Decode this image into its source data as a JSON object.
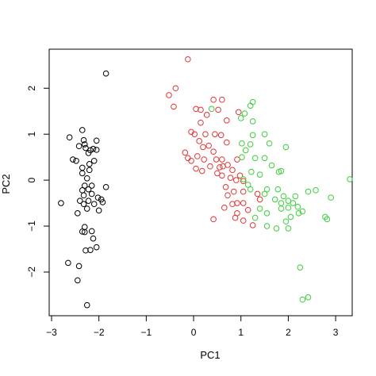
{
  "chart_data": {
    "type": "scatter",
    "title": "",
    "xlabel": "PC1",
    "ylabel": "PC2",
    "xlim": [
      -3.05,
      3.35
    ],
    "ylim": [
      -2.95,
      2.85
    ],
    "xticks": [
      -3,
      -2,
      -1,
      0,
      1,
      2,
      3
    ],
    "yticks": [
      -2,
      -1,
      0,
      1,
      2
    ],
    "grid": false,
    "legend": "none",
    "series": [
      {
        "color": "#000000",
        "points": [
          [
            -1.85,
            2.32
          ],
          [
            -2.35,
            1.09
          ],
          [
            -2.62,
            0.93
          ],
          [
            -2.32,
            0.87
          ],
          [
            -2.05,
            0.86
          ],
          [
            -2.3,
            0.78
          ],
          [
            -2.42,
            0.74
          ],
          [
            -2.28,
            0.7
          ],
          [
            -2.12,
            0.68
          ],
          [
            -2.18,
            0.65
          ],
          [
            -2.05,
            0.66
          ],
          [
            -2.22,
            0.59
          ],
          [
            -2.55,
            0.45
          ],
          [
            -2.48,
            0.42
          ],
          [
            -2.1,
            0.42
          ],
          [
            -2.2,
            0.35
          ],
          [
            -2.35,
            0.27
          ],
          [
            -2.2,
            0.22
          ],
          [
            -2.35,
            0.15
          ],
          [
            -2.25,
            0.04
          ],
          [
            -2.3,
            -0.12
          ],
          [
            -2.15,
            -0.12
          ],
          [
            -2.22,
            -0.2
          ],
          [
            -2.35,
            -0.22
          ],
          [
            -1.85,
            -0.15
          ],
          [
            -2.32,
            -0.33
          ],
          [
            -2.15,
            -0.3
          ],
          [
            -1.95,
            -0.42
          ],
          [
            -2.02,
            -0.38
          ],
          [
            -2.4,
            -0.45
          ],
          [
            -2.22,
            -0.45
          ],
          [
            -2.8,
            -0.5
          ],
          [
            -1.92,
            -0.48
          ],
          [
            -2.32,
            -0.52
          ],
          [
            -2.1,
            -0.52
          ],
          [
            -2.25,
            -0.62
          ],
          [
            -2.0,
            -0.66
          ],
          [
            -2.45,
            -0.72
          ],
          [
            -2.3,
            -1.02
          ],
          [
            -2.35,
            -1.12
          ],
          [
            -2.15,
            -1.11
          ],
          [
            -2.3,
            -1.13
          ],
          [
            -2.12,
            -1.27
          ],
          [
            -2.05,
            -1.46
          ],
          [
            -2.18,
            -1.52
          ],
          [
            -2.28,
            -1.53
          ],
          [
            -2.65,
            -1.8
          ],
          [
            -2.42,
            -1.87
          ],
          [
            -2.45,
            -2.18
          ],
          [
            -2.25,
            -2.72
          ]
        ]
      },
      {
        "color": "#df3636",
        "points": [
          [
            -0.12,
            2.63
          ],
          [
            -0.38,
            2.0
          ],
          [
            -0.52,
            1.85
          ],
          [
            -0.42,
            1.6
          ],
          [
            0.42,
            1.75
          ],
          [
            0.6,
            1.75
          ],
          [
            0.05,
            1.55
          ],
          [
            0.15,
            1.53
          ],
          [
            0.52,
            1.53
          ],
          [
            0.7,
            1.3
          ],
          [
            0.28,
            1.42
          ],
          [
            0.15,
            1.25
          ],
          [
            0.95,
            1.48
          ],
          [
            -0.05,
            1.05
          ],
          [
            0.02,
            1.0
          ],
          [
            0.25,
            1.0
          ],
          [
            0.45,
            1.0
          ],
          [
            0.58,
            0.98
          ],
          [
            0.7,
            0.82
          ],
          [
            0.12,
            0.85
          ],
          [
            0.32,
            0.75
          ],
          [
            0.2,
            0.72
          ],
          [
            -0.18,
            0.6
          ],
          [
            0.42,
            0.62
          ],
          [
            -0.12,
            0.48
          ],
          [
            0.08,
            0.52
          ],
          [
            0.22,
            0.45
          ],
          [
            0.48,
            0.45
          ],
          [
            0.6,
            0.45
          ],
          [
            -0.05,
            0.42
          ],
          [
            0.35,
            0.3
          ],
          [
            0.62,
            0.3
          ],
          [
            0.72,
            0.33
          ],
          [
            0.92,
            0.45
          ],
          [
            0.05,
            0.25
          ],
          [
            0.18,
            0.2
          ],
          [
            0.55,
            0.28
          ],
          [
            0.82,
            0.22
          ],
          [
            0.5,
            0.15
          ],
          [
            0.6,
            0.1
          ],
          [
            0.78,
            0.05
          ],
          [
            0.98,
            0.1
          ],
          [
            0.9,
            0.0
          ],
          [
            1.05,
            -0.02
          ],
          [
            0.68,
            -0.15
          ],
          [
            0.85,
            -0.25
          ],
          [
            1.05,
            -0.25
          ],
          [
            1.35,
            -0.3
          ],
          [
            0.72,
            -0.33
          ],
          [
            0.82,
            -0.52
          ],
          [
            0.92,
            -0.5
          ],
          [
            1.05,
            -0.5
          ],
          [
            0.65,
            -0.6
          ],
          [
            1.15,
            -0.65
          ],
          [
            0.42,
            -0.85
          ],
          [
            0.88,
            -0.82
          ],
          [
            1.05,
            -0.88
          ],
          [
            1.25,
            -0.98
          ],
          [
            0.92,
            -0.72
          ],
          [
            1.4,
            -0.42
          ]
        ]
      },
      {
        "color": "#3dce3d",
        "points": [
          [
            1.25,
            1.7
          ],
          [
            1.2,
            1.62
          ],
          [
            1.08,
            1.45
          ],
          [
            1.0,
            1.35
          ],
          [
            1.25,
            1.28
          ],
          [
            0.38,
            1.55
          ],
          [
            1.25,
            0.98
          ],
          [
            1.5,
            1.0
          ],
          [
            1.02,
            0.8
          ],
          [
            1.2,
            0.78
          ],
          [
            1.6,
            0.8
          ],
          [
            1.95,
            0.72
          ],
          [
            1.1,
            0.65
          ],
          [
            1.02,
            0.5
          ],
          [
            1.3,
            0.48
          ],
          [
            1.5,
            0.48
          ],
          [
            1.65,
            0.32
          ],
          [
            1.22,
            0.18
          ],
          [
            1.85,
            0.2
          ],
          [
            1.8,
            0.18
          ],
          [
            1.05,
            0.02
          ],
          [
            1.4,
            0.12
          ],
          [
            1.15,
            -0.1
          ],
          [
            1.2,
            -0.2
          ],
          [
            1.55,
            -0.2
          ],
          [
            1.5,
            -0.3
          ],
          [
            1.78,
            -0.2
          ],
          [
            1.9,
            -0.35
          ],
          [
            2.42,
            -0.25
          ],
          [
            2.0,
            -0.45
          ],
          [
            2.15,
            -0.35
          ],
          [
            2.58,
            -0.22
          ],
          [
            2.9,
            -0.38
          ],
          [
            1.85,
            -0.5
          ],
          [
            2.0,
            -0.6
          ],
          [
            2.1,
            -0.5
          ],
          [
            2.2,
            -0.58
          ],
          [
            1.4,
            -0.62
          ],
          [
            1.85,
            -0.62
          ],
          [
            2.22,
            -0.72
          ],
          [
            1.55,
            -0.72
          ],
          [
            2.05,
            -0.8
          ],
          [
            2.78,
            -0.8
          ],
          [
            2.82,
            -0.85
          ],
          [
            1.95,
            -0.9
          ],
          [
            1.55,
            -1.0
          ],
          [
            1.75,
            -1.05
          ],
          [
            2.0,
            -1.05
          ],
          [
            2.25,
            -1.9
          ],
          [
            2.3,
            -2.6
          ],
          [
            2.42,
            -2.55
          ],
          [
            3.3,
            0.02
          ],
          [
            2.3,
            -0.68
          ],
          [
            1.72,
            -0.42
          ],
          [
            1.3,
            -0.82
          ]
        ]
      }
    ]
  }
}
